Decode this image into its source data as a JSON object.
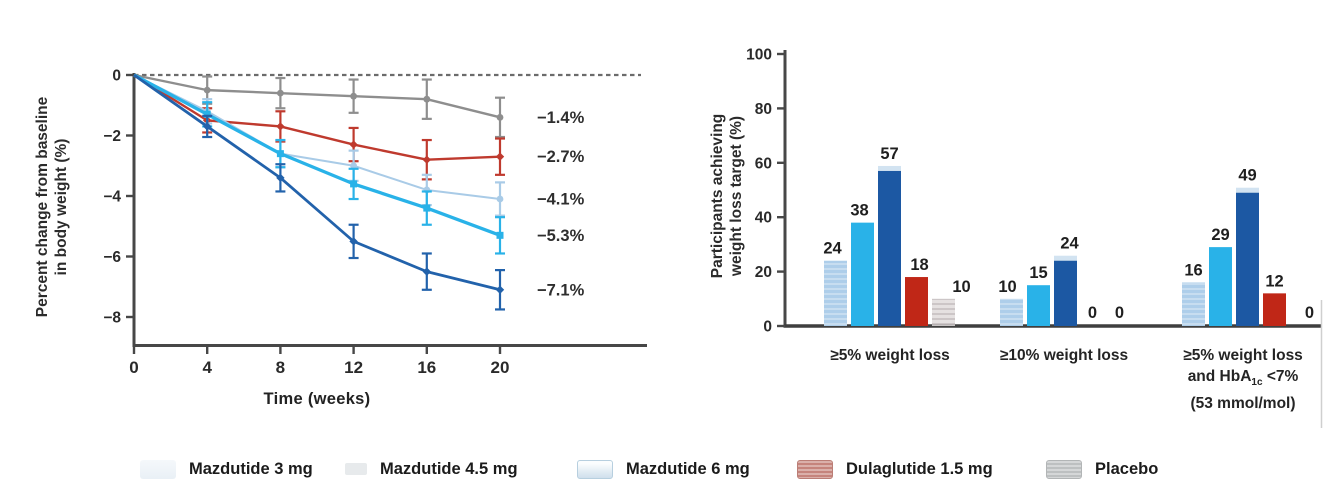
{
  "figure": {
    "background": "#ffffff"
  },
  "colors": {
    "mazdutide_3mg": "#a9cbe7",
    "mazdutide_45mg": "#29b2e8",
    "mazdutide_6mg": "#1c58a3",
    "dulaglutide": "#bf3a2e",
    "dulaglutide_bar": "#c02717",
    "placebo": "#8e8e8e",
    "axis": "#474747",
    "text": "#2a2a2a",
    "bar_cap": "#d2e3f1"
  },
  "legend": {
    "items": [
      {
        "label": "Mazdutide 3 mg",
        "color": "#a9cbe7",
        "swatch_style": "washed-lightblue"
      },
      {
        "label": "Mazdutide 4.5 mg",
        "color": "#29b2e8",
        "swatch_style": "washed-faint"
      },
      {
        "label": "Mazdutide 6 mg",
        "color": "#1c58a3",
        "swatch_style": "washed-blue"
      },
      {
        "label": "Dulaglutide 1.5 mg",
        "color": "#c02717",
        "swatch_style": "hatched-red"
      },
      {
        "label": "Placebo",
        "color": "#8e8e8e",
        "swatch_style": "hatched-gray"
      }
    ]
  },
  "chart_data": [
    {
      "type": "line",
      "title": "",
      "xlabel": "Time (weeks)",
      "ylabel_lines": [
        "Percent change from baseline",
        "in body weight (%)"
      ],
      "x": [
        0,
        4,
        8,
        12,
        16,
        20
      ],
      "xticks": [
        0,
        4,
        8,
        12,
        16,
        20
      ],
      "yticks": [
        0,
        -2,
        -4,
        -6,
        -8
      ],
      "ylim": [
        -8.9,
        0.3
      ],
      "zero_line": "dashed",
      "grid": false,
      "legend_position": "bottom",
      "series": [
        {
          "name": "Mazdutide 3 mg",
          "color": "#a9cbe7",
          "values": [
            0,
            -1.2,
            -2.6,
            -3.0,
            -3.8,
            -4.1
          ],
          "errors": [
            0,
            0.4,
            0.45,
            0.5,
            0.5,
            0.55
          ],
          "end_label": "−4.1%"
        },
        {
          "name": "Mazdutide 4.5 mg",
          "color": "#29b2e8",
          "values": [
            0,
            -1.3,
            -2.6,
            -3.6,
            -4.4,
            -5.3
          ],
          "errors": [
            0,
            0.4,
            0.45,
            0.5,
            0.55,
            0.6
          ],
          "end_label": "−5.3%"
        },
        {
          "name": "Mazdutide 6 mg",
          "color": "#2262ab",
          "values": [
            0,
            -1.7,
            -3.4,
            -5.5,
            -6.5,
            -7.1
          ],
          "errors": [
            0,
            0.35,
            0.45,
            0.55,
            0.6,
            0.65
          ],
          "end_label": "−7.1%"
        },
        {
          "name": "Dulaglutide 1.5 mg",
          "color": "#bf3a2e",
          "values": [
            0,
            -1.5,
            -1.7,
            -2.3,
            -2.8,
            -2.7
          ],
          "errors": [
            0,
            0.4,
            0.5,
            0.55,
            0.65,
            0.6
          ],
          "end_label": "−2.7%"
        },
        {
          "name": "Placebo",
          "color": "#8e8e8e",
          "values": [
            0,
            -0.5,
            -0.6,
            -0.7,
            -0.8,
            -1.4
          ],
          "errors": [
            0,
            0.45,
            0.5,
            0.55,
            0.65,
            0.65
          ],
          "end_label": "−1.4%"
        }
      ]
    },
    {
      "type": "bar",
      "title": "",
      "xlabel": "",
      "ylabel_lines": [
        "Participants achieving",
        "weight loss target (%)"
      ],
      "categories": [
        {
          "lines": [
            "≥5% weight loss"
          ]
        },
        {
          "lines": [
            "≥10% weight loss"
          ]
        },
        {
          "lines": [
            "≥5% weight loss",
            "and HbA1c <7%",
            "(53 mmol/mol)"
          ]
        }
      ],
      "yticks": [
        0,
        20,
        40,
        60,
        80,
        100
      ],
      "ylim": [
        0,
        100
      ],
      "grid": false,
      "series": [
        {
          "name": "Mazdutide 3 mg",
          "values": [
            24,
            10,
            16
          ]
        },
        {
          "name": "Mazdutide 4.5 mg",
          "values": [
            38,
            15,
            29
          ]
        },
        {
          "name": "Mazdutide 6 mg",
          "values": [
            57,
            24,
            49
          ]
        },
        {
          "name": "Dulaglutide 1.5 mg",
          "values": [
            18,
            0,
            12
          ]
        },
        {
          "name": "Placebo",
          "values": [
            10,
            0,
            0
          ]
        }
      ]
    }
  ]
}
